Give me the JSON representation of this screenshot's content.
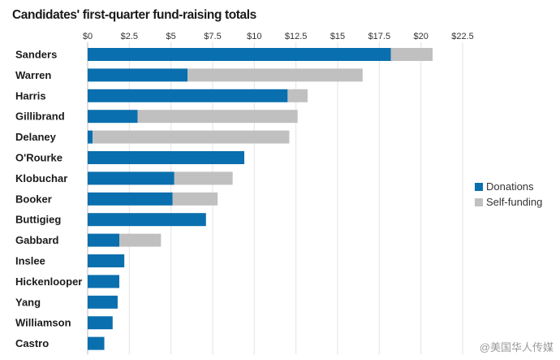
{
  "chart_data": {
    "type": "bar",
    "orientation": "horizontal",
    "stacked": true,
    "title": "Candidates' first-quarter fund-raising totals",
    "xlabel": "",
    "ylabel": "",
    "xlim": [
      0,
      22.5
    ],
    "x_ticks": [
      0,
      2.5,
      5,
      7.5,
      10,
      12.5,
      15,
      17.5,
      20,
      22.5
    ],
    "x_tick_labels": [
      "$0",
      "$2.5",
      "$5",
      "$7.5",
      "$10",
      "$12.5",
      "$15",
      "$17.5",
      "$20",
      "$22.5"
    ],
    "grid": true,
    "legend_position": "right",
    "categories": [
      "Sanders",
      "Warren",
      "Harris",
      "Gillibrand",
      "Delaney",
      "O'Rourke",
      "Klobuchar",
      "Booker",
      "Buttigieg",
      "Gabbard",
      "Inslee",
      "Hickenlooper",
      "Yang",
      "Williamson",
      "Castro"
    ],
    "series": [
      {
        "name": "Donations",
        "color": "#0a6fae",
        "values": [
          18.2,
          6.0,
          12.0,
          3.0,
          0.3,
          9.4,
          5.2,
          5.1,
          7.1,
          1.9,
          2.2,
          1.9,
          1.8,
          1.5,
          1.0
        ]
      },
      {
        "name": "Self-funding",
        "color": "#c0c0c0",
        "values": [
          2.5,
          10.5,
          1.2,
          9.6,
          11.8,
          0,
          3.5,
          2.7,
          0,
          2.5,
          0,
          0,
          0,
          0,
          0
        ]
      }
    ]
  },
  "watermark": {
    "text": "@美国华人传媒"
  }
}
